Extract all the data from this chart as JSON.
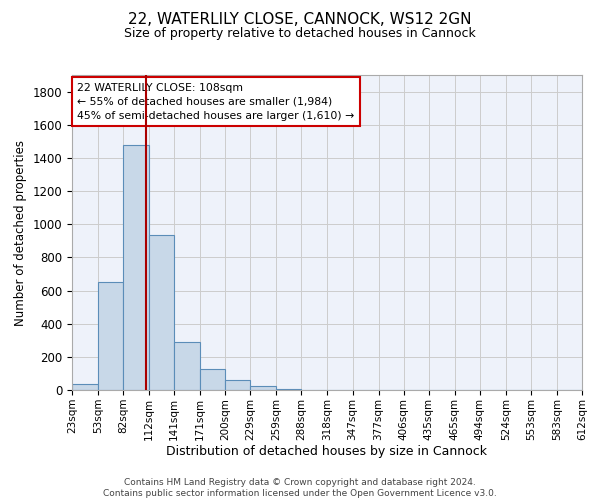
{
  "title_line1": "22, WATERLILY CLOSE, CANNOCK, WS12 2GN",
  "title_line2": "Size of property relative to detached houses in Cannock",
  "xlabel": "Distribution of detached houses by size in Cannock",
  "ylabel": "Number of detached properties",
  "bar_color": "#c8d8e8",
  "bar_edge_color": "#5b8db8",
  "grid_color": "#cccccc",
  "background_color": "#eef2fa",
  "vline_x": 108,
  "vline_color": "#aa0000",
  "bin_edges": [
    23,
    53,
    82,
    112,
    141,
    171,
    200,
    229,
    259,
    288,
    318,
    347,
    377,
    406,
    435,
    465,
    494,
    524,
    553,
    583,
    612
  ],
  "bar_heights": [
    35,
    650,
    1475,
    935,
    290,
    125,
    62,
    22,
    8,
    0,
    0,
    0,
    0,
    0,
    0,
    0,
    0,
    0,
    0,
    0
  ],
  "ylim": [
    0,
    1900
  ],
  "yticks": [
    0,
    200,
    400,
    600,
    800,
    1000,
    1200,
    1400,
    1600,
    1800
  ],
  "annotation_text": "22 WATERLILY CLOSE: 108sqm\n← 55% of detached houses are smaller (1,984)\n45% of semi-detached houses are larger (1,610) →",
  "annotation_box_color": "#ffffff",
  "annotation_box_edge_color": "#cc0000",
  "footer_text": "Contains HM Land Registry data © Crown copyright and database right 2024.\nContains public sector information licensed under the Open Government Licence v3.0.",
  "tick_labels": [
    "23sqm",
    "53sqm",
    "82sqm",
    "112sqm",
    "141sqm",
    "171sqm",
    "200sqm",
    "229sqm",
    "259sqm",
    "288sqm",
    "318sqm",
    "347sqm",
    "377sqm",
    "406sqm",
    "435sqm",
    "465sqm",
    "494sqm",
    "524sqm",
    "553sqm",
    "583sqm",
    "612sqm"
  ],
  "title_fontsize": 11,
  "subtitle_fontsize": 9,
  "ylabel_fontsize": 8.5,
  "xlabel_fontsize": 9,
  "ytick_fontsize": 8.5,
  "xtick_fontsize": 7.5,
  "footer_fontsize": 6.5
}
